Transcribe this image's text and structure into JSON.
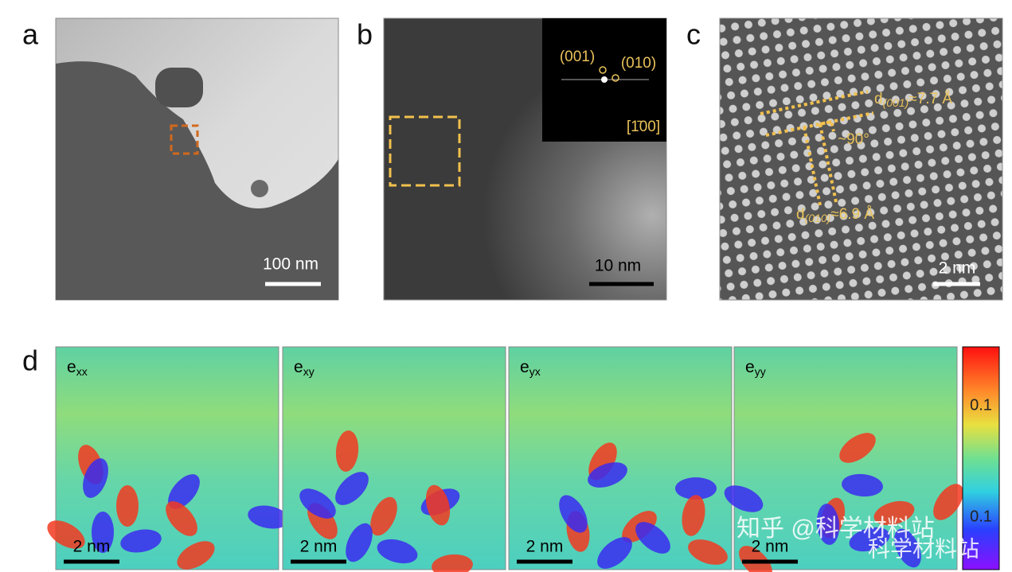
{
  "panel_a": {
    "label": "a",
    "scale_bar": "100 nm"
  },
  "panel_b": {
    "label": "b",
    "scale_bar": "10 nm",
    "fft": {
      "spot_1": "(001)",
      "spot_2": "(010)",
      "zone_axis": "[1̄00]"
    }
  },
  "panel_c": {
    "label": "c",
    "scale_bar": "2 nm",
    "spacing_1": {
      "main": "d",
      "sub": "(001)",
      "rest": "≈7.7 Å"
    },
    "angle": "~90°",
    "spacing_2": {
      "main": "d",
      "sub": "(010)",
      "rest": "≈6.9 Å"
    }
  },
  "panel_d": {
    "label": "d",
    "maps": [
      {
        "main": "e",
        "sub": "xx",
        "scale_bar": "2 nm"
      },
      {
        "main": "e",
        "sub": "xy",
        "scale_bar": "2 nm"
      },
      {
        "main": "e",
        "sub": "yx",
        "scale_bar": "2 nm"
      },
      {
        "main": "e",
        "sub": "yy",
        "scale_bar": "2 nm"
      }
    ],
    "colorbar_labels": [
      "0.1",
      "0.1"
    ]
  },
  "watermark": {
    "line_1": "知乎 @科学材料站",
    "line_2": "科学材料站"
  }
}
